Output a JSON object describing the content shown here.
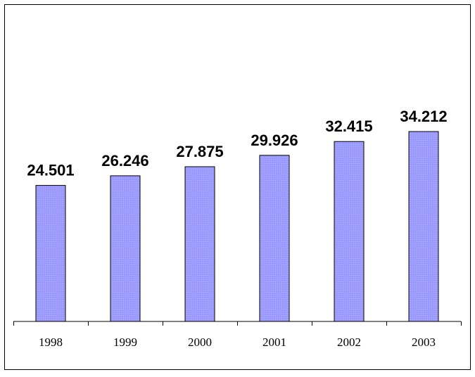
{
  "chart_data": {
    "type": "bar",
    "categories": [
      "1998",
      "1999",
      "2000",
      "2001",
      "2002",
      "2003"
    ],
    "values": [
      24501,
      26246,
      27875,
      29926,
      32415,
      34212
    ],
    "data_labels": [
      "24.501",
      "26.246",
      "27.875",
      "29.926",
      "32.415",
      "34.212"
    ],
    "title": "",
    "xlabel": "",
    "ylabel": "",
    "ylim": [
      0,
      40000
    ],
    "grid": false,
    "legend": "none",
    "bar_color": "#9999ff",
    "bar_edge_color": "#000000"
  }
}
